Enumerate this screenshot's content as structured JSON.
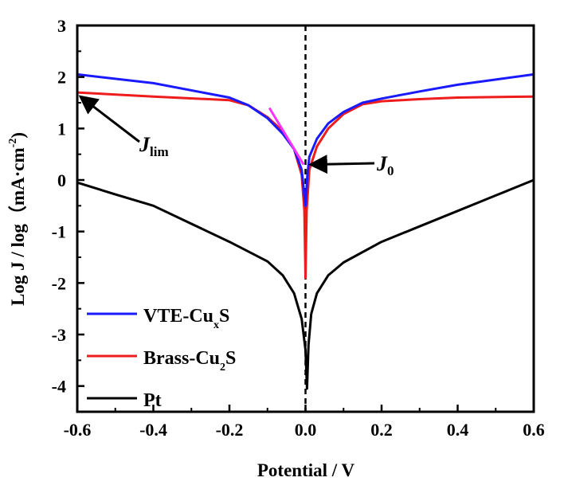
{
  "chart_data": {
    "type": "line",
    "title": "",
    "xlabel": "Potential / V",
    "ylabel": "Log J / log（mA·cm",
    "ylabel_sup": "-2",
    "ylabel_end": ")",
    "xlim": [
      -0.6,
      0.6
    ],
    "ylim": [
      -4.5,
      3
    ],
    "xticks": [
      "-0.6",
      "-0.4",
      "-0.2",
      "0.0",
      "0.2",
      "0.4",
      "0.6"
    ],
    "yticks": [
      "3",
      "2",
      "1",
      "0",
      "-1",
      "-2",
      "-3",
      "-4"
    ],
    "grid": false,
    "legend_placement": "bottom-left",
    "series": [
      {
        "name": "VTE-CuxS",
        "name_main": "VTE-Cu",
        "name_sub": "x",
        "name_end": "S",
        "color": "#1a1aff",
        "x": [
          -0.6,
          -0.4,
          -0.2,
          -0.15,
          -0.1,
          -0.06,
          -0.03,
          -0.01,
          0.0,
          0.005,
          0.01,
          0.03,
          0.06,
          0.1,
          0.15,
          0.2,
          0.3,
          0.4,
          0.5,
          0.6
        ],
        "y": [
          2.05,
          1.88,
          1.6,
          1.45,
          1.2,
          0.9,
          0.6,
          0.2,
          -0.5,
          0.1,
          0.45,
          0.8,
          1.1,
          1.32,
          1.5,
          1.58,
          1.72,
          1.85,
          1.95,
          2.05
        ]
      },
      {
        "name": "Brass-Cu2S",
        "name_main": "Brass-Cu",
        "name_sub": "2",
        "name_end": "S",
        "color": "#ee1c1c",
        "x": [
          -0.6,
          -0.4,
          -0.2,
          -0.15,
          -0.1,
          -0.06,
          -0.03,
          -0.01,
          -0.003,
          0.0,
          0.003,
          0.01,
          0.03,
          0.06,
          0.1,
          0.15,
          0.2,
          0.3,
          0.4,
          0.6
        ],
        "y": [
          1.7,
          1.62,
          1.55,
          1.45,
          1.22,
          0.95,
          0.6,
          0.1,
          -0.6,
          -1.9,
          -0.6,
          0.2,
          0.65,
          1.0,
          1.28,
          1.47,
          1.53,
          1.57,
          1.6,
          1.62
        ]
      },
      {
        "name": "Pt",
        "name_main": "Pt",
        "name_sub": "",
        "name_end": "",
        "color": "#000000",
        "x": [
          -0.6,
          -0.5,
          -0.4,
          -0.3,
          -0.2,
          -0.1,
          -0.06,
          -0.03,
          -0.01,
          0.0,
          0.004,
          0.008,
          0.015,
          0.03,
          0.06,
          0.1,
          0.2,
          0.3,
          0.4,
          0.5,
          0.6
        ],
        "y": [
          -0.05,
          -0.28,
          -0.5,
          -0.85,
          -1.2,
          -1.58,
          -1.85,
          -2.2,
          -2.7,
          -3.3,
          -4.05,
          -3.2,
          -2.6,
          -2.2,
          -1.85,
          -1.6,
          -1.2,
          -0.9,
          -0.6,
          -0.3,
          0.0
        ]
      }
    ],
    "tangent": {
      "color": "#ff33ff",
      "x": [
        -0.095,
        -0.005
      ],
      "y": [
        1.4,
        0.3
      ]
    },
    "vertical_line": {
      "x": 0.0,
      "style": "dashed"
    },
    "annotations": [
      {
        "label": "J",
        "sub": "lim",
        "points_to": [
          -0.6,
          1.65
        ]
      },
      {
        "label": "J",
        "sub": "0",
        "points_to": [
          0.005,
          0.3
        ]
      }
    ]
  }
}
